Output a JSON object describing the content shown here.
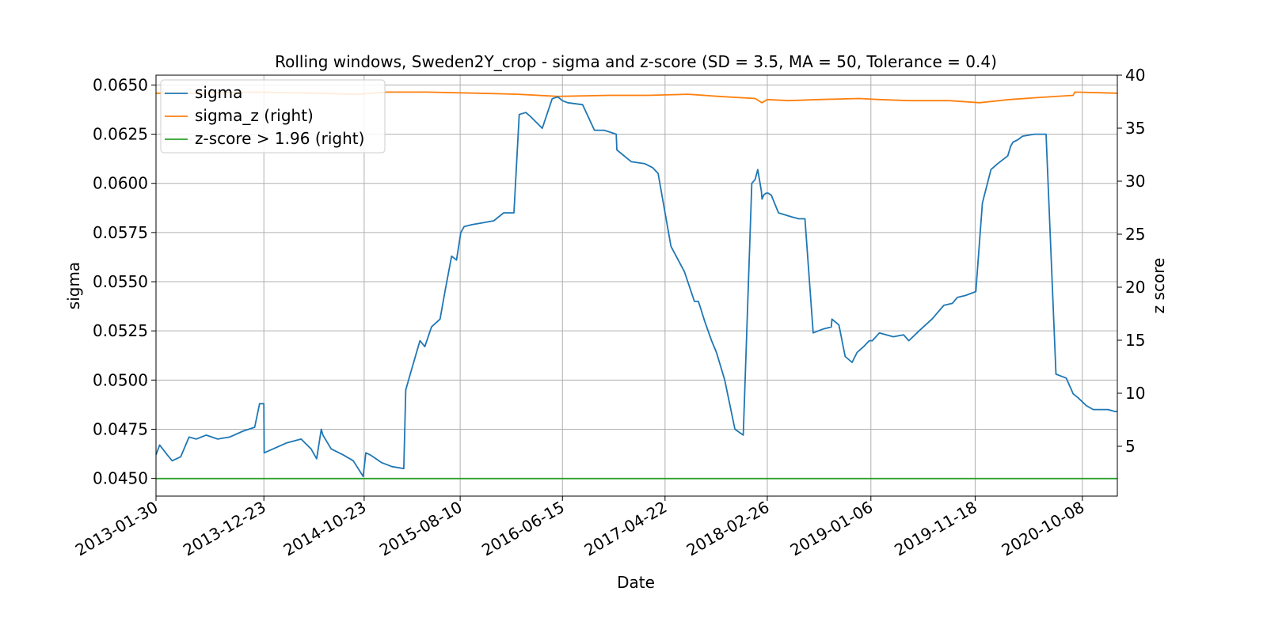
{
  "chart_data": {
    "type": "line",
    "title": "Rolling windows, Sweden2Y_crop - sigma and z-score (SD = 3.5, MA = 50, Tolerance  = 0.4)",
    "xlabel": "Date",
    "ylabel": "sigma",
    "y2label": "z score",
    "x_ticks": [
      "2013-01-30",
      "2013-12-23",
      "2014-10-23",
      "2015-08-10",
      "2016-06-15",
      "2017-04-22",
      "2018-02-26",
      "2019-01-06",
      "2019-11-18",
      "2020-10-08"
    ],
    "xlim": [
      "2013-01-30",
      "2021-01-22"
    ],
    "y_ticks": [
      "0.0450",
      "0.0475",
      "0.0500",
      "0.0525",
      "0.0550",
      "0.0575",
      "0.0600",
      "0.0625",
      "0.0650"
    ],
    "ylim": [
      0.0441,
      0.0655
    ],
    "y2_ticks": [
      "5",
      "10",
      "15",
      "20",
      "25",
      "30",
      "35",
      "40"
    ],
    "y2lim": [
      0.3,
      40.0
    ],
    "grid": true,
    "legend_position": "upper-left",
    "colors": {
      "sigma": "#1f77b4",
      "sigma_z": "#ff7f0e",
      "zscore": "#2ca02c"
    },
    "series": [
      {
        "name": "sigma",
        "axis": "left",
        "x": [
          "2013-01-30",
          "2013-02-10",
          "2013-03-05",
          "2013-03-20",
          "2013-04-15",
          "2013-05-10",
          "2013-06-01",
          "2013-07-01",
          "2013-08-05",
          "2013-09-10",
          "2013-10-20",
          "2013-11-25",
          "2013-12-10",
          "2013-12-23",
          "2013-12-24",
          "2014-01-20",
          "2014-03-01",
          "2014-04-15",
          "2014-05-15",
          "2014-06-01",
          "2014-06-15",
          "2014-06-20",
          "2014-07-15",
          "2014-08-20",
          "2014-09-20",
          "2014-10-20",
          "2014-10-28",
          "2014-11-10",
          "2014-12-15",
          "2015-01-15",
          "2015-02-20",
          "2015-02-26",
          "2015-03-15",
          "2015-04-10",
          "2015-04-25",
          "2015-05-15",
          "2015-06-10",
          "2015-06-25",
          "2015-07-15",
          "2015-07-30",
          "2015-08-12",
          "2015-08-22",
          "2015-09-15",
          "2015-10-20",
          "2015-11-20",
          "2015-12-20",
          "2016-01-20",
          "2016-02-05",
          "2016-02-25",
          "2016-03-10",
          "2016-04-15",
          "2016-05-15",
          "2016-06-01",
          "2016-06-15",
          "2016-07-01",
          "2016-08-15",
          "2016-09-20",
          "2016-10-20",
          "2016-11-25",
          "2016-11-27",
          "2017-01-10",
          "2017-02-20",
          "2017-03-15",
          "2017-04-01",
          "2017-05-10",
          "2017-06-20",
          "2017-07-20",
          "2017-08-01",
          "2017-08-05",
          "2017-08-20",
          "2017-09-10",
          "2017-09-25",
          "2017-10-20",
          "2017-11-20",
          "2017-12-15",
          "2018-01-10",
          "2018-01-20",
          "2018-01-28",
          "2018-02-08",
          "2018-02-10",
          "2018-02-15",
          "2018-02-22",
          "2018-03-01",
          "2018-03-10",
          "2018-04-01",
          "2018-05-10",
          "2018-06-01",
          "2018-06-20",
          "2018-07-15",
          "2018-08-15",
          "2018-09-08",
          "2018-09-10",
          "2018-10-01",
          "2018-10-20",
          "2018-11-10",
          "2018-11-25",
          "2018-12-15",
          "2019-01-01",
          "2019-01-10",
          "2019-02-01",
          "2019-03-15",
          "2019-04-15",
          "2019-05-01",
          "2019-06-01",
          "2019-07-10",
          "2019-08-15",
          "2019-09-10",
          "2019-09-25",
          "2019-10-20",
          "2019-11-20",
          "2019-12-10",
          "2020-01-05",
          "2020-01-25",
          "2020-02-25",
          "2020-03-05",
          "2020-03-12",
          "2020-03-25",
          "2020-04-10",
          "2020-05-15",
          "2020-06-20",
          "2020-07-20",
          "2020-08-20",
          "2020-09-05",
          "2020-09-10",
          "2020-09-25",
          "2020-10-20",
          "2020-11-10",
          "2020-12-01",
          "2020-12-25",
          "2021-01-15",
          "2021-01-22"
        ],
        "values": [
          0.0462,
          0.0467,
          0.0462,
          0.0459,
          0.0461,
          0.0471,
          0.047,
          0.0472,
          0.047,
          0.0471,
          0.0474,
          0.0476,
          0.0488,
          0.0488,
          0.0463,
          0.0465,
          0.0468,
          0.047,
          0.0465,
          0.046,
          0.0475,
          0.0472,
          0.0465,
          0.0462,
          0.0459,
          0.0451,
          0.0463,
          0.0462,
          0.0458,
          0.0456,
          0.0455,
          0.0495,
          0.0505,
          0.052,
          0.0517,
          0.0527,
          0.0531,
          0.0545,
          0.0563,
          0.0561,
          0.0575,
          0.0578,
          0.0579,
          0.058,
          0.0581,
          0.0585,
          0.0585,
          0.0635,
          0.0636,
          0.0634,
          0.0628,
          0.0643,
          0.0644,
          0.0642,
          0.0641,
          0.064,
          0.0627,
          0.0627,
          0.0625,
          0.0617,
          0.0611,
          0.061,
          0.0608,
          0.0605,
          0.0568,
          0.0555,
          0.054,
          0.054,
          0.0538,
          0.053,
          0.052,
          0.0514,
          0.05,
          0.0475,
          0.0472,
          0.06,
          0.0602,
          0.0607,
          0.0596,
          0.0592,
          0.0594,
          0.0595,
          0.0595,
          0.0594,
          0.0585,
          0.0583,
          0.0582,
          0.0582,
          0.0524,
          0.0526,
          0.0527,
          0.0531,
          0.0528,
          0.0512,
          0.0509,
          0.0514,
          0.0517,
          0.052,
          0.052,
          0.0524,
          0.0522,
          0.0523,
          0.052,
          0.0525,
          0.0531,
          0.0538,
          0.0539,
          0.0542,
          0.0543,
          0.0545,
          0.059,
          0.0607,
          0.061,
          0.0614,
          0.0619,
          0.0621,
          0.0622,
          0.0624,
          0.0625,
          0.0625,
          0.0503,
          0.0501,
          0.0495,
          0.0493,
          0.0491,
          0.0487,
          0.0485,
          0.0485,
          0.0485,
          0.0484,
          0.0484
        ]
      },
      {
        "name": "sigma_z (right)",
        "axis": "right",
        "x": [
          "2013-01-30",
          "2013-06-01",
          "2013-12-01",
          "2014-06-01",
          "2014-10-01",
          "2015-01-01",
          "2015-05-01",
          "2015-10-01",
          "2016-02-01",
          "2016-06-01",
          "2016-11-01",
          "2017-03-01",
          "2017-07-01",
          "2017-10-01",
          "2018-01-20",
          "2018-02-10",
          "2018-02-26",
          "2018-05-01",
          "2018-08-01",
          "2018-12-01",
          "2019-02-01",
          "2019-05-01",
          "2019-09-01",
          "2019-12-01",
          "2020-03-01",
          "2020-06-01",
          "2020-09-10",
          "2020-09-15",
          "2021-01-22"
        ],
        "values": [
          38.3,
          38.3,
          38.4,
          38.3,
          38.2,
          38.4,
          38.4,
          38.3,
          38.2,
          38.0,
          38.1,
          38.1,
          38.2,
          38.0,
          37.8,
          37.4,
          37.7,
          37.6,
          37.7,
          37.8,
          37.7,
          37.6,
          37.6,
          37.4,
          37.7,
          37.9,
          38.1,
          38.4,
          38.3
        ]
      },
      {
        "name": "z-score > 1.96 (right)",
        "axis": "right",
        "x": [
          "2013-01-30",
          "2021-01-22"
        ],
        "values": [
          1.96,
          1.96
        ]
      }
    ]
  },
  "legend": {
    "items": [
      {
        "label": "sigma",
        "color": "#1f77b4"
      },
      {
        "label": "sigma_z (right)",
        "color": "#ff7f0e"
      },
      {
        "label": "z-score > 1.96 (right)",
        "color": "#2ca02c"
      }
    ]
  }
}
